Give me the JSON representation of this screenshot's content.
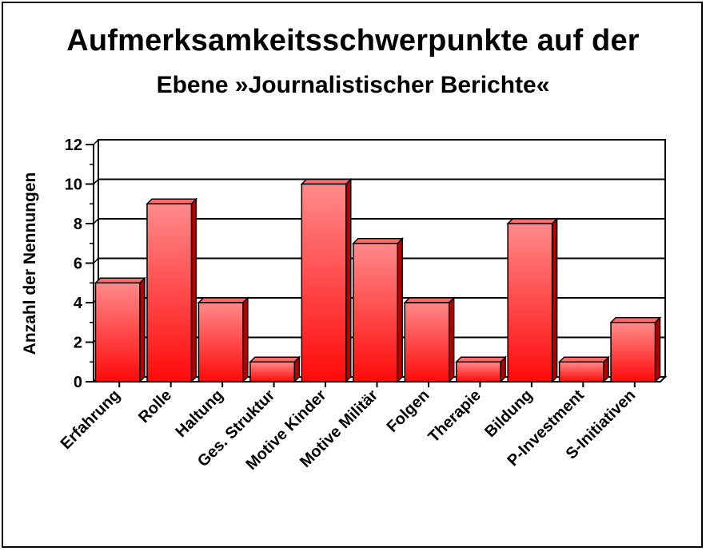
{
  "chart_data": {
    "type": "bar",
    "title": "Aufmerksamkeitsschwerpunkte auf der",
    "subtitle": "Ebene »Journalistischer Berichte«",
    "ylabel": "Anzahl der Nennungen",
    "xlabel": "",
    "ylim": [
      0,
      12
    ],
    "yticks": [
      0,
      2,
      4,
      6,
      8,
      10,
      12
    ],
    "grid": true,
    "categories": [
      "Erfahrung",
      "Rolle",
      "Haltung",
      "Ges. Struktur",
      "Motive Kinder",
      "Motive Militär",
      "Folgen",
      "Therapie",
      "Bildung",
      "P-Investment",
      "S-Initiativen"
    ],
    "values": [
      5,
      9,
      4,
      1,
      10,
      7,
      4,
      1,
      8,
      1,
      3
    ],
    "colors": {
      "bar_top": "#ff8a8a",
      "bar_bottom": "#ff0a0a",
      "bar_side": "#b80000",
      "bar_cap": "#ff6a6a",
      "outline": "#000000"
    }
  }
}
